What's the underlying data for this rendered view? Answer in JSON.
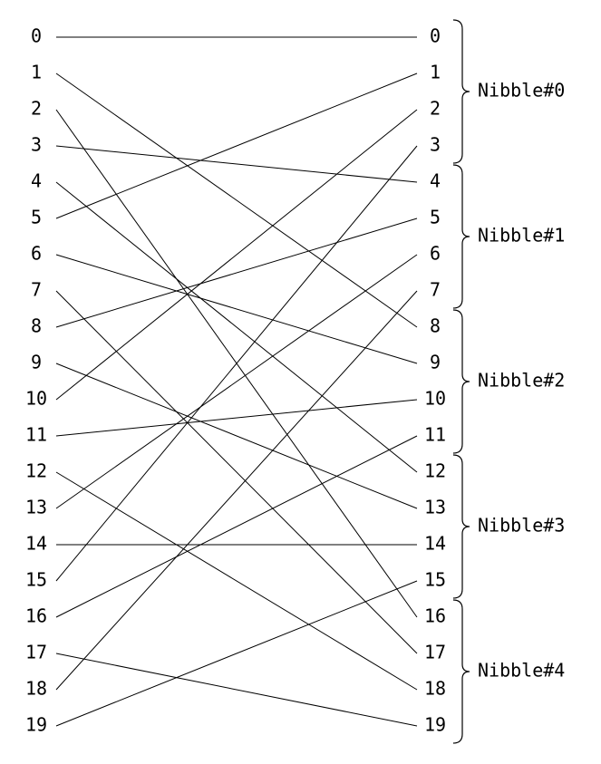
{
  "left_labels": [
    "0",
    "1",
    "2",
    "3",
    "4",
    "5",
    "6",
    "7",
    "8",
    "9",
    "10",
    "11",
    "12",
    "13",
    "14",
    "15",
    "16",
    "17",
    "18",
    "19"
  ],
  "right_labels": [
    "0",
    "1",
    "2",
    "3",
    "4",
    "5",
    "6",
    "7",
    "8",
    "9",
    "10",
    "11",
    "12",
    "13",
    "14",
    "15",
    "16",
    "17",
    "18",
    "19"
  ],
  "edges": [
    {
      "from": 0,
      "to": 0
    },
    {
      "from": 1,
      "to": 8
    },
    {
      "from": 2,
      "to": 16
    },
    {
      "from": 3,
      "to": 4
    },
    {
      "from": 4,
      "to": 12
    },
    {
      "from": 5,
      "to": 1
    },
    {
      "from": 6,
      "to": 9
    },
    {
      "from": 7,
      "to": 17
    },
    {
      "from": 8,
      "to": 5
    },
    {
      "from": 9,
      "to": 13
    },
    {
      "from": 10,
      "to": 2
    },
    {
      "from": 11,
      "to": 10
    },
    {
      "from": 12,
      "to": 18
    },
    {
      "from": 13,
      "to": 6
    },
    {
      "from": 14,
      "to": 14
    },
    {
      "from": 15,
      "to": 3
    },
    {
      "from": 16,
      "to": 11
    },
    {
      "from": 17,
      "to": 19
    },
    {
      "from": 18,
      "to": 7
    },
    {
      "from": 19,
      "to": 15
    }
  ],
  "groups": [
    "Nibble#0",
    "Nibble#1",
    "Nibble#2",
    "Nibble#3",
    "Nibble#4"
  ]
}
